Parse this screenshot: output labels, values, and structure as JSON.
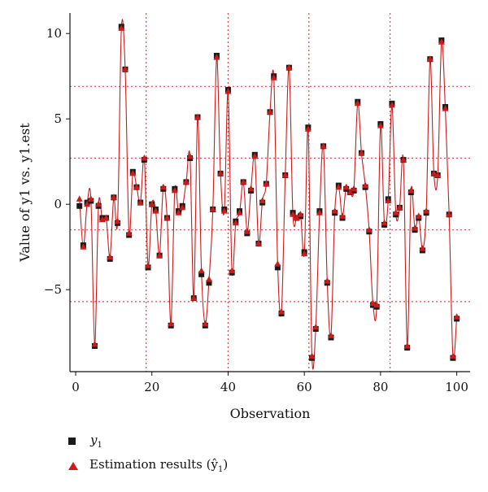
{
  "chart_data": {
    "type": "line",
    "title": "",
    "xlabel": "Observation",
    "ylabel": "Value of y1 vs. y1.est",
    "xlim": [
      -1.5,
      103.5
    ],
    "ylim": [
      -9.8,
      11.2
    ],
    "xticks": [
      0,
      20,
      40,
      60,
      80,
      100
    ],
    "yticks": [
      -5,
      0,
      5,
      10
    ],
    "xtick_labels": [
      "0",
      "20",
      "40",
      "60",
      "80",
      "100"
    ],
    "ytick_labels": [
      "−5",
      "0",
      "5",
      "10"
    ],
    "reference_lines": {
      "vertical": [
        18.5,
        40,
        61.2,
        82.5
      ],
      "horizontal": [
        6.9,
        2.7,
        -1.5,
        -5.7
      ]
    },
    "series": [
      {
        "name": "y1",
        "marker": "square",
        "color": "#1a1a1a",
        "x": [
          1,
          2,
          3,
          4,
          5,
          6,
          7,
          8,
          9,
          10,
          11,
          12,
          13,
          14,
          15,
          16,
          17,
          18,
          19,
          20,
          21,
          22,
          23,
          24,
          25,
          26,
          27,
          28,
          29,
          30,
          31,
          32,
          33,
          34,
          35,
          36,
          37,
          38,
          39,
          40,
          41,
          42,
          43,
          44,
          45,
          46,
          47,
          48,
          49,
          50,
          51,
          52,
          53,
          54,
          55,
          56,
          57,
          58,
          59,
          60,
          61,
          62,
          63,
          64,
          65,
          66,
          67,
          68,
          69,
          70,
          71,
          72,
          73,
          74,
          75,
          76,
          77,
          78,
          79,
          80,
          81,
          82,
          83,
          84,
          85,
          86,
          87,
          88,
          89,
          90,
          91,
          92,
          93,
          94,
          95,
          96,
          97,
          98,
          99,
          100
        ],
        "y": [
          -0.1,
          -2.4,
          0.1,
          0.2,
          -8.3,
          -0.1,
          -0.8,
          -0.8,
          -3.2,
          0.4,
          -1.1,
          10.4,
          7.9,
          -1.8,
          1.9,
          1.0,
          0.1,
          2.6,
          -3.7,
          0.0,
          -0.3,
          -3.0,
          0.9,
          -0.8,
          -7.1,
          0.9,
          -0.4,
          -0.1,
          1.3,
          2.7,
          -5.5,
          5.1,
          -4.1,
          -7.1,
          -4.6,
          -0.3,
          8.7,
          1.8,
          -0.3,
          6.7,
          -4.0,
          -1.0,
          -0.4,
          1.3,
          -1.7,
          0.8,
          2.9,
          -2.3,
          0.1,
          1.2,
          5.4,
          7.5,
          -3.7,
          -6.4,
          1.7,
          8.0,
          -0.5,
          -0.8,
          -0.7,
          -2.8,
          4.5,
          -9.0,
          -7.3,
          -0.4,
          3.4,
          -4.6,
          -7.8,
          -0.5,
          1.1,
          -0.8,
          0.9,
          0.7,
          0.8,
          6.0,
          3.0,
          1.0,
          -1.6,
          -5.9,
          -6.0,
          4.7,
          -1.2,
          0.3,
          5.9,
          -0.6,
          -0.2,
          2.6,
          -8.4,
          0.7,
          -1.5,
          -0.8,
          -2.7,
          -0.5,
          8.5,
          1.8,
          1.7,
          9.6,
          5.7,
          -0.6,
          -9.0,
          -6.7
        ]
      },
      {
        "name": "Estimation results (ŷ1)",
        "marker": "triangle",
        "color": "#cc1b1b",
        "x": [
          1,
          2,
          3,
          4,
          5,
          6,
          7,
          8,
          9,
          10,
          11,
          12,
          13,
          14,
          15,
          16,
          17,
          18,
          19,
          20,
          21,
          22,
          23,
          24,
          25,
          26,
          27,
          28,
          29,
          30,
          31,
          32,
          33,
          34,
          35,
          36,
          37,
          38,
          39,
          40,
          41,
          42,
          43,
          44,
          45,
          46,
          47,
          48,
          49,
          50,
          51,
          52,
          53,
          54,
          55,
          56,
          57,
          58,
          59,
          60,
          61,
          62,
          63,
          64,
          65,
          66,
          67,
          68,
          69,
          70,
          71,
          72,
          73,
          74,
          75,
          76,
          77,
          78,
          79,
          80,
          81,
          82,
          83,
          84,
          85,
          86,
          87,
          88,
          89,
          90,
          91,
          92,
          93,
          94,
          95,
          96,
          97,
          98,
          99,
          100
        ],
        "y": [
          0.3,
          -2.5,
          0.0,
          0.3,
          -8.2,
          0.0,
          -0.9,
          -0.8,
          -3.1,
          0.4,
          -1.0,
          10.3,
          7.9,
          -1.7,
          1.8,
          1.0,
          0.1,
          2.7,
          -3.6,
          0.0,
          -0.4,
          -3.0,
          1.0,
          -0.8,
          -7.0,
          0.8,
          -0.5,
          -0.2,
          1.3,
          2.8,
          -5.5,
          5.1,
          -3.9,
          -7.0,
          -4.4,
          -0.3,
          8.6,
          1.8,
          -0.4,
          6.6,
          -3.9,
          -1.1,
          -0.5,
          1.3,
          -1.6,
          0.9,
          2.8,
          -2.3,
          0.2,
          1.2,
          5.4,
          7.4,
          -3.5,
          -6.3,
          1.7,
          8.0,
          -0.6,
          -0.8,
          -0.6,
          -2.9,
          4.4,
          -8.9,
          -7.2,
          -0.5,
          3.4,
          -4.5,
          -7.7,
          -0.4,
          1.0,
          -0.7,
          1.0,
          0.7,
          0.9,
          5.9,
          3.0,
          1.1,
          -1.5,
          -5.8,
          -5.9,
          4.6,
          -1.1,
          0.2,
          5.8,
          -0.5,
          -0.2,
          2.6,
          -8.3,
          0.8,
          -1.4,
          -0.7,
          -2.6,
          -0.4,
          8.5,
          1.8,
          1.7,
          9.5,
          5.6,
          -0.6,
          -8.9,
          -6.6
        ]
      }
    ],
    "legend_position": "bottom-left"
  },
  "legend": {
    "items": [
      {
        "label": "y",
        "subscript": "1"
      },
      {
        "label": "Estimation results (ŷ",
        "subscript": "1",
        "suffix": ")"
      }
    ]
  }
}
